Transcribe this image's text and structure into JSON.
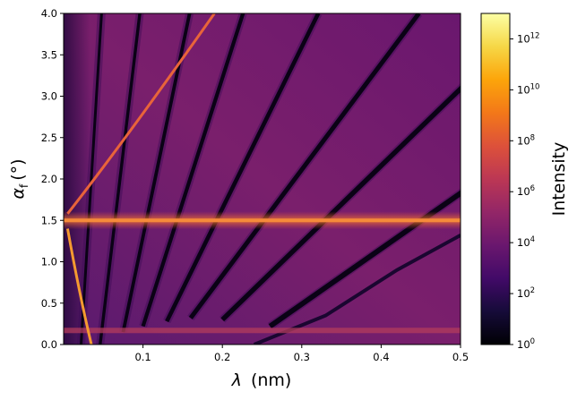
{
  "chart_data": {
    "type": "heatmap",
    "title": "",
    "xlabel": {
      "symbol": "λ",
      "unit": "(nm)"
    },
    "ylabel": {
      "symbol": "α",
      "subscript": "f",
      "unit": "(°)"
    },
    "xlim": [
      0.0,
      0.5
    ],
    "ylim": [
      0.0,
      4.0
    ],
    "x_ticks": [
      "0.1",
      "0.2",
      "0.3",
      "0.4",
      "0.5"
    ],
    "y_ticks": [
      "0.0",
      "0.5",
      "1.0",
      "1.5",
      "2.0",
      "2.5",
      "3.0",
      "3.5",
      "4.0"
    ],
    "colorbar": {
      "label": "Intensity",
      "scale": "log",
      "range": [
        1,
        10000000000000.0
      ],
      "ticks": [
        {
          "base": "10",
          "exp": "0"
        },
        {
          "base": "10",
          "exp": "2"
        },
        {
          "base": "10",
          "exp": "4"
        },
        {
          "base": "10",
          "exp": "6"
        },
        {
          "base": "10",
          "exp": "8"
        },
        {
          "base": "10",
          "exp": "10"
        },
        {
          "base": "10",
          "exp": "12"
        }
      ],
      "colormap": "inferno"
    },
    "features": {
      "horizontal_band_alpha_f": 1.5,
      "horizontal_band_low_alpha_f": 0.17,
      "lambda_at_alpha_1_5_start": 0.005,
      "rising_bright_curve": [
        [
          0.005,
          1.58
        ],
        [
          0.08,
          2.5
        ],
        [
          0.19,
          4.0
        ]
      ],
      "falling_bright_curve": [
        [
          0.005,
          1.4
        ],
        [
          0.02,
          0.6
        ],
        [
          0.035,
          0.0
        ]
      ],
      "diagonal_dark_lines": [
        {
          "x0": 0.022,
          "y0": 0.0,
          "slope_deg_per_nm": 155
        },
        {
          "x0": 0.046,
          "y0": 0.0,
          "slope_deg_per_nm": 80
        },
        {
          "x0": 0.075,
          "y0": 0.15,
          "slope_deg_per_nm": 46
        },
        {
          "x0": 0.1,
          "y0": 0.22,
          "slope_deg_per_nm": 30
        },
        {
          "x0": 0.13,
          "y0": 0.28,
          "slope_deg_per_nm": 19.5
        },
        {
          "x0": 0.16,
          "y0": 0.32,
          "slope_deg_per_nm": 12.8
        },
        {
          "x0": 0.2,
          "y0": 0.3,
          "slope_deg_per_nm": 9.3
        },
        {
          "x0": 0.26,
          "y0": 0.22,
          "slope_deg_per_nm": 6.7
        }
      ],
      "lower_right_dark_curve": [
        [
          0.24,
          0.0
        ],
        [
          0.33,
          0.35
        ],
        [
          0.42,
          0.9
        ],
        [
          0.5,
          1.32
        ]
      ]
    }
  }
}
